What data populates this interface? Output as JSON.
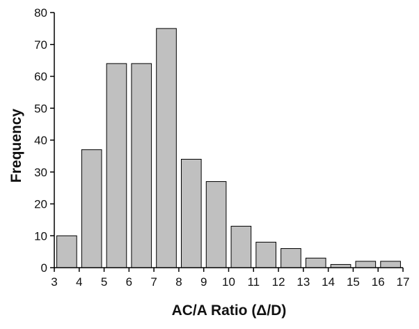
{
  "chart_data": {
    "type": "bar",
    "title": "",
    "xlabel": "AC/A Ratio (Δ/D)",
    "ylabel": "Frequency",
    "xlim": [
      3,
      17
    ],
    "ylim": [
      0,
      80
    ],
    "x_ticks": [
      3,
      4,
      5,
      6,
      7,
      8,
      9,
      10,
      11,
      12,
      13,
      14,
      15,
      16,
      17
    ],
    "y_ticks": [
      0,
      10,
      20,
      30,
      40,
      50,
      60,
      70,
      80
    ],
    "bins": [
      {
        "x_start": 3,
        "x_end": 4,
        "value": 10
      },
      {
        "x_start": 4,
        "x_end": 5,
        "value": 37
      },
      {
        "x_start": 5,
        "x_end": 6,
        "value": 64
      },
      {
        "x_start": 6,
        "x_end": 7,
        "value": 64
      },
      {
        "x_start": 7,
        "x_end": 8,
        "value": 75
      },
      {
        "x_start": 8,
        "x_end": 9,
        "value": 34
      },
      {
        "x_start": 9,
        "x_end": 10,
        "value": 27
      },
      {
        "x_start": 10,
        "x_end": 11,
        "value": 13
      },
      {
        "x_start": 11,
        "x_end": 12,
        "value": 8
      },
      {
        "x_start": 12,
        "x_end": 13,
        "value": 6
      },
      {
        "x_start": 13,
        "x_end": 14,
        "value": 3
      },
      {
        "x_start": 14,
        "x_end": 15,
        "value": 1
      },
      {
        "x_start": 15,
        "x_end": 16,
        "value": 2
      },
      {
        "x_start": 16,
        "x_end": 17,
        "value": 2
      }
    ],
    "bar_color": "#c0c0c0",
    "bar_edge_color": "#000000",
    "grid": false,
    "legend": "none"
  }
}
